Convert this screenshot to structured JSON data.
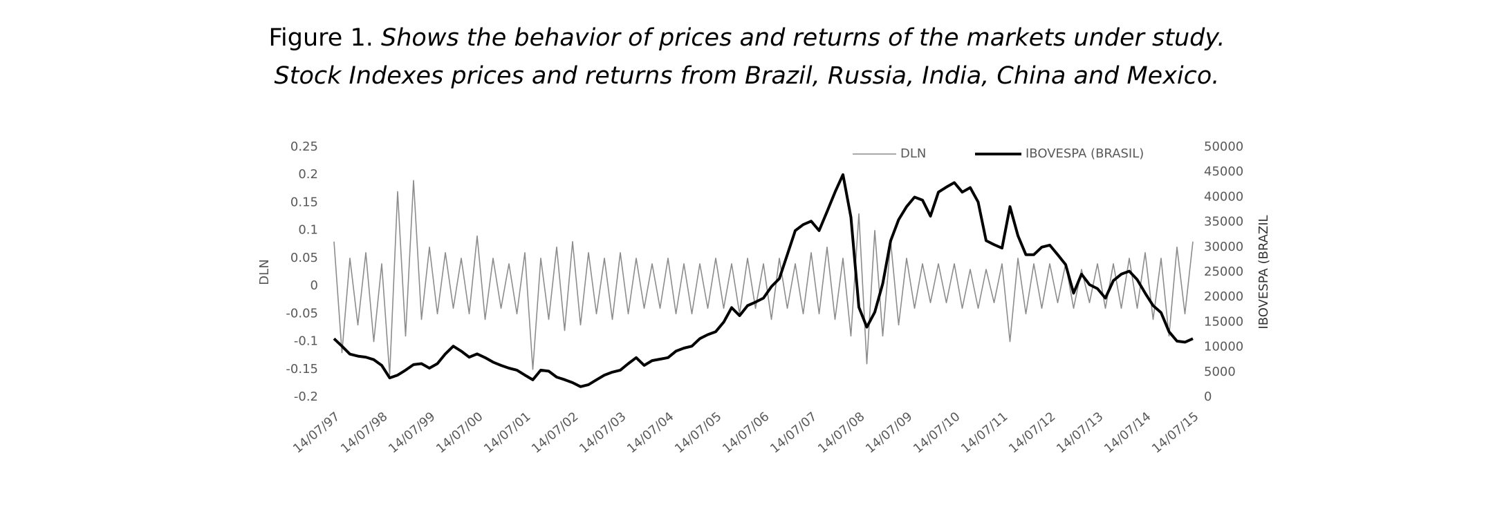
{
  "chart_data": {
    "type": "line",
    "figure_label": "Figure 1.",
    "title": "Shows the behavior of prices and returns of the markets under study.",
    "subtitle": "Stock Indexes prices and returns from Brazil, Russia, India, China and Mexico.",
    "y_label": "DLN",
    "y2_label": "IBOVESPA (BRAZIL",
    "categories": [
      "14/07/97",
      null,
      null,
      null,
      null,
      null,
      "14/07/98",
      null,
      null,
      null,
      null,
      null,
      "14/07/99",
      null,
      null,
      null,
      null,
      null,
      "14/07/00",
      null,
      null,
      null,
      null,
      null,
      "14/07/01",
      null,
      null,
      null,
      null,
      null,
      "14/07/02",
      null,
      null,
      null,
      null,
      null,
      "14/07/03",
      null,
      null,
      null,
      null,
      null,
      "14/07/04",
      null,
      null,
      null,
      null,
      null,
      "14/07/05",
      null,
      null,
      null,
      null,
      null,
      "14/07/06",
      null,
      null,
      null,
      null,
      null,
      "14/07/07",
      null,
      null,
      null,
      null,
      null,
      "14/07/08",
      null,
      null,
      null,
      null,
      null,
      "14/07/09",
      null,
      null,
      null,
      null,
      null,
      "14/07/10",
      null,
      null,
      null,
      null,
      null,
      "14/07/11",
      null,
      null,
      null,
      null,
      null,
      "14/07/12",
      null,
      null,
      null,
      null,
      null,
      "14/07/13",
      null,
      null,
      null,
      null,
      null,
      "14/07/14",
      null,
      null,
      null,
      null,
      null,
      "14/07/15"
    ],
    "series": [
      {
        "name": "DLN",
        "color": "#8c8c8c",
        "axis": "y",
        "values": [
          0.08,
          -0.12,
          0.05,
          -0.07,
          0.06,
          -0.1,
          0.04,
          -0.16,
          0.17,
          -0.09,
          0.19,
          -0.06,
          0.07,
          -0.05,
          0.06,
          -0.04,
          0.05,
          -0.05,
          0.09,
          -0.06,
          0.05,
          -0.04,
          0.04,
          -0.05,
          0.06,
          -0.15,
          0.05,
          -0.06,
          0.07,
          -0.08,
          0.08,
          -0.07,
          0.06,
          -0.05,
          0.05,
          -0.06,
          0.06,
          -0.05,
          0.05,
          -0.04,
          0.04,
          -0.04,
          0.05,
          -0.05,
          0.04,
          -0.05,
          0.04,
          -0.04,
          0.05,
          -0.04,
          0.04,
          -0.05,
          0.05,
          -0.04,
          0.04,
          -0.06,
          0.05,
          -0.04,
          0.04,
          -0.05,
          0.06,
          -0.05,
          0.07,
          -0.06,
          0.05,
          -0.09,
          0.13,
          -0.14,
          0.1,
          -0.09,
          0.08,
          -0.07,
          0.05,
          -0.04,
          0.04,
          -0.03,
          0.04,
          -0.03,
          0.04,
          -0.04,
          0.03,
          -0.04,
          0.03,
          -0.03,
          0.04,
          -0.1,
          0.05,
          -0.05,
          0.04,
          -0.04,
          0.04,
          -0.03,
          0.04,
          -0.04,
          0.03,
          -0.03,
          0.04,
          -0.04,
          0.04,
          -0.04,
          0.05,
          -0.04,
          0.06,
          -0.06,
          0.05,
          -0.09,
          0.07,
          -0.05,
          0.08
        ]
      },
      {
        "name": "IBOVESPA (BRASIL)",
        "color": "#000000",
        "axis": "y2",
        "values": [
          11700,
          10200,
          8600,
          8200,
          8000,
          7500,
          6350,
          3850,
          4400,
          5400,
          6500,
          6700,
          5800,
          6700,
          8650,
          10200,
          9200,
          8000,
          8650,
          7900,
          7000,
          6350,
          5800,
          5400,
          4400,
          3460,
          5400,
          5200,
          4000,
          3500,
          2900,
          2100,
          2500,
          3460,
          4400,
          5000,
          5400,
          6700,
          7900,
          6350,
          7300,
          7600,
          7900,
          9200,
          9800,
          10200,
          11700,
          12500,
          13100,
          15000,
          17900,
          16300,
          18300,
          19000,
          19800,
          22100,
          23700,
          28500,
          33300,
          34500,
          35200,
          33300,
          37100,
          41000,
          44500,
          36000,
          18000,
          14000,
          17000,
          22700,
          31300,
          35500,
          38100,
          40000,
          39400,
          36200,
          41000,
          42000,
          42900,
          41000,
          41900,
          39000,
          31300,
          30500,
          29800,
          38100,
          32300,
          28500,
          28500,
          30000,
          30400,
          28500,
          26500,
          20800,
          24600,
          22500,
          21700,
          19800,
          23300,
          24600,
          25200,
          23500,
          20800,
          18300,
          16900,
          13100,
          11200,
          11000,
          11700
        ]
      }
    ],
    "ylim": [
      -0.2,
      0.25
    ],
    "yticks": [
      -0.2,
      -0.15,
      -0.1,
      -0.05,
      0,
      0.05,
      0.1,
      0.15,
      0.2,
      0.25
    ],
    "y2lim": [
      0,
      50000
    ],
    "y2ticks": [
      0,
      5000,
      10000,
      15000,
      20000,
      25000,
      30000,
      35000,
      40000,
      45000,
      50000
    ],
    "legend": "top-right"
  }
}
